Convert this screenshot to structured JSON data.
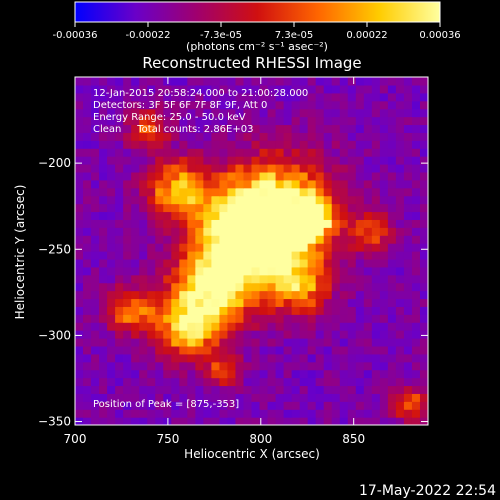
{
  "chart_data": {
    "type": "heatmap",
    "title": "Reconstructed RHESSI Image",
    "xlabel": "Heliocentric X (arcsec)",
    "ylabel": "Heliocentric Y (arcsec)",
    "xlim": [
      700,
      890
    ],
    "ylim": [
      -352,
      -150
    ],
    "xticks": [
      700,
      750,
      800,
      850
    ],
    "yticks": [
      -200,
      -250,
      -300,
      -350
    ],
    "colorbar": {
      "label": "(photons cm⁻² s⁻¹ asec⁻²)",
      "range": [
        -0.00036,
        0.00036
      ],
      "ticks": [
        "-0.00036",
        "-0.00022",
        "-7.3e-05",
        "7.3e-05",
        "0.00022",
        "0.00036"
      ],
      "colormap": [
        "#0000ff",
        "#6a00c8",
        "#a0006e",
        "#d01010",
        "#ff6600",
        "#ffcc00",
        "#ffffa0"
      ]
    },
    "annotations": [
      "12-Jan-2015 20:58:24.000 to 21:00:28.000",
      "Detectors: 3F 5F 6F 7F 8F 9F, Att 0",
      "Energy Range: 25.0 - 50.0 keV",
      "Clean     Total counts: 2.86E+03"
    ],
    "peak_label": "Position of Peak = [875,-353]",
    "peak": [
      875,
      -353
    ],
    "source_regions": [
      {
        "x": 808,
        "y": -228,
        "r": 38,
        "v": 0.95
      },
      {
        "x": 826,
        "y": -232,
        "r": 14,
        "v": 1.0
      },
      {
        "x": 790,
        "y": -242,
        "r": 30,
        "v": 0.9
      },
      {
        "x": 775,
        "y": -273,
        "r": 28,
        "v": 0.85
      },
      {
        "x": 760,
        "y": -295,
        "r": 22,
        "v": 0.7
      },
      {
        "x": 755,
        "y": -215,
        "r": 20,
        "v": 0.7
      },
      {
        "x": 730,
        "y": -285,
        "r": 16,
        "v": 0.55
      },
      {
        "x": 820,
        "y": -270,
        "r": 22,
        "v": 0.6
      },
      {
        "x": 860,
        "y": -240,
        "r": 14,
        "v": 0.45
      },
      {
        "x": 740,
        "y": -180,
        "r": 14,
        "v": 0.45
      },
      {
        "x": 880,
        "y": -340,
        "r": 12,
        "v": 0.5
      },
      {
        "x": 780,
        "y": -320,
        "r": 12,
        "v": 0.45
      }
    ]
  },
  "timestamp": "17-May-2022 22:54"
}
